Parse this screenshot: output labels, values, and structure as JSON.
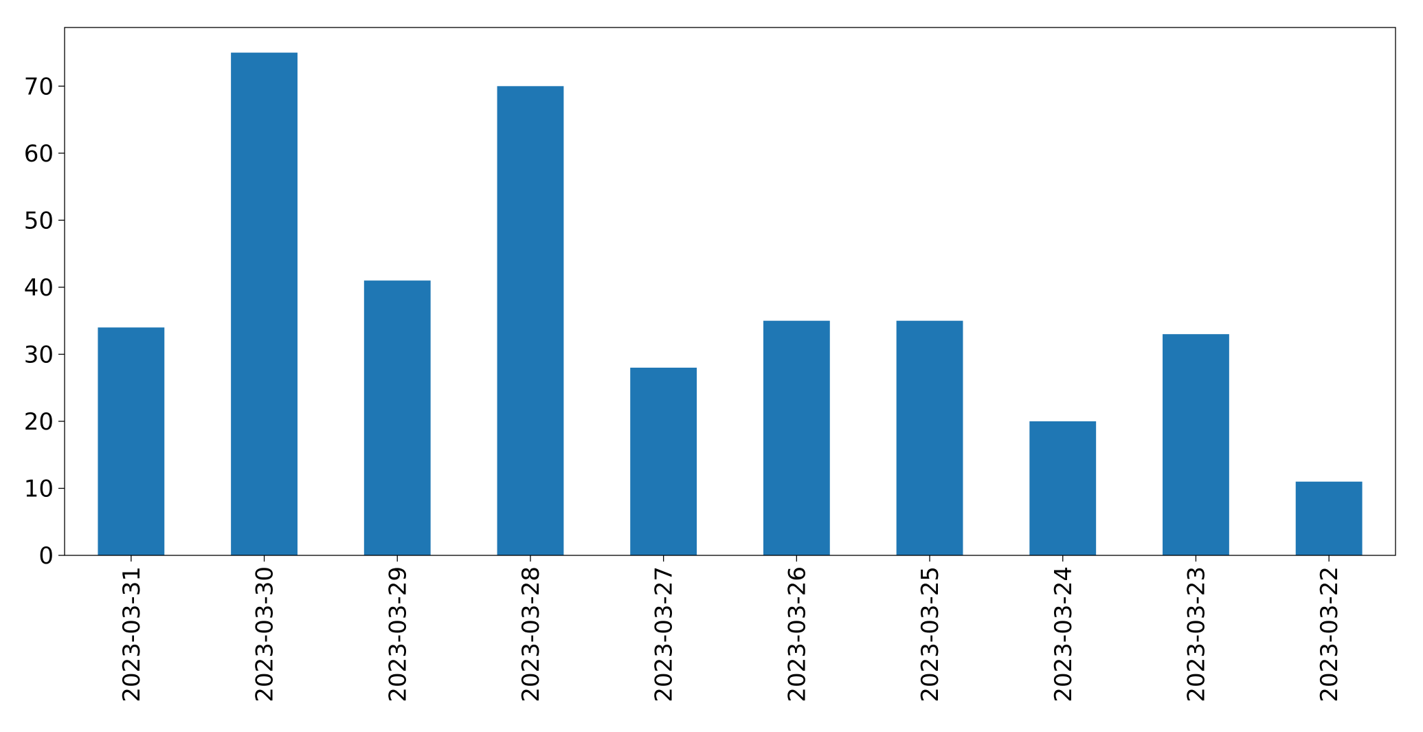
{
  "chart_data": {
    "type": "bar",
    "categories": [
      "2023-03-31",
      "2023-03-30",
      "2023-03-29",
      "2023-03-28",
      "2023-03-27",
      "2023-03-26",
      "2023-03-25",
      "2023-03-24",
      "2023-03-23",
      "2023-03-22"
    ],
    "values": [
      34,
      75,
      41,
      70,
      28,
      35,
      35,
      20,
      33,
      11
    ],
    "color": "#1f77b4",
    "ylim": [
      0,
      78.75
    ],
    "yticks": [
      0,
      10,
      20,
      30,
      40,
      50,
      60,
      70
    ],
    "grid": false
  }
}
